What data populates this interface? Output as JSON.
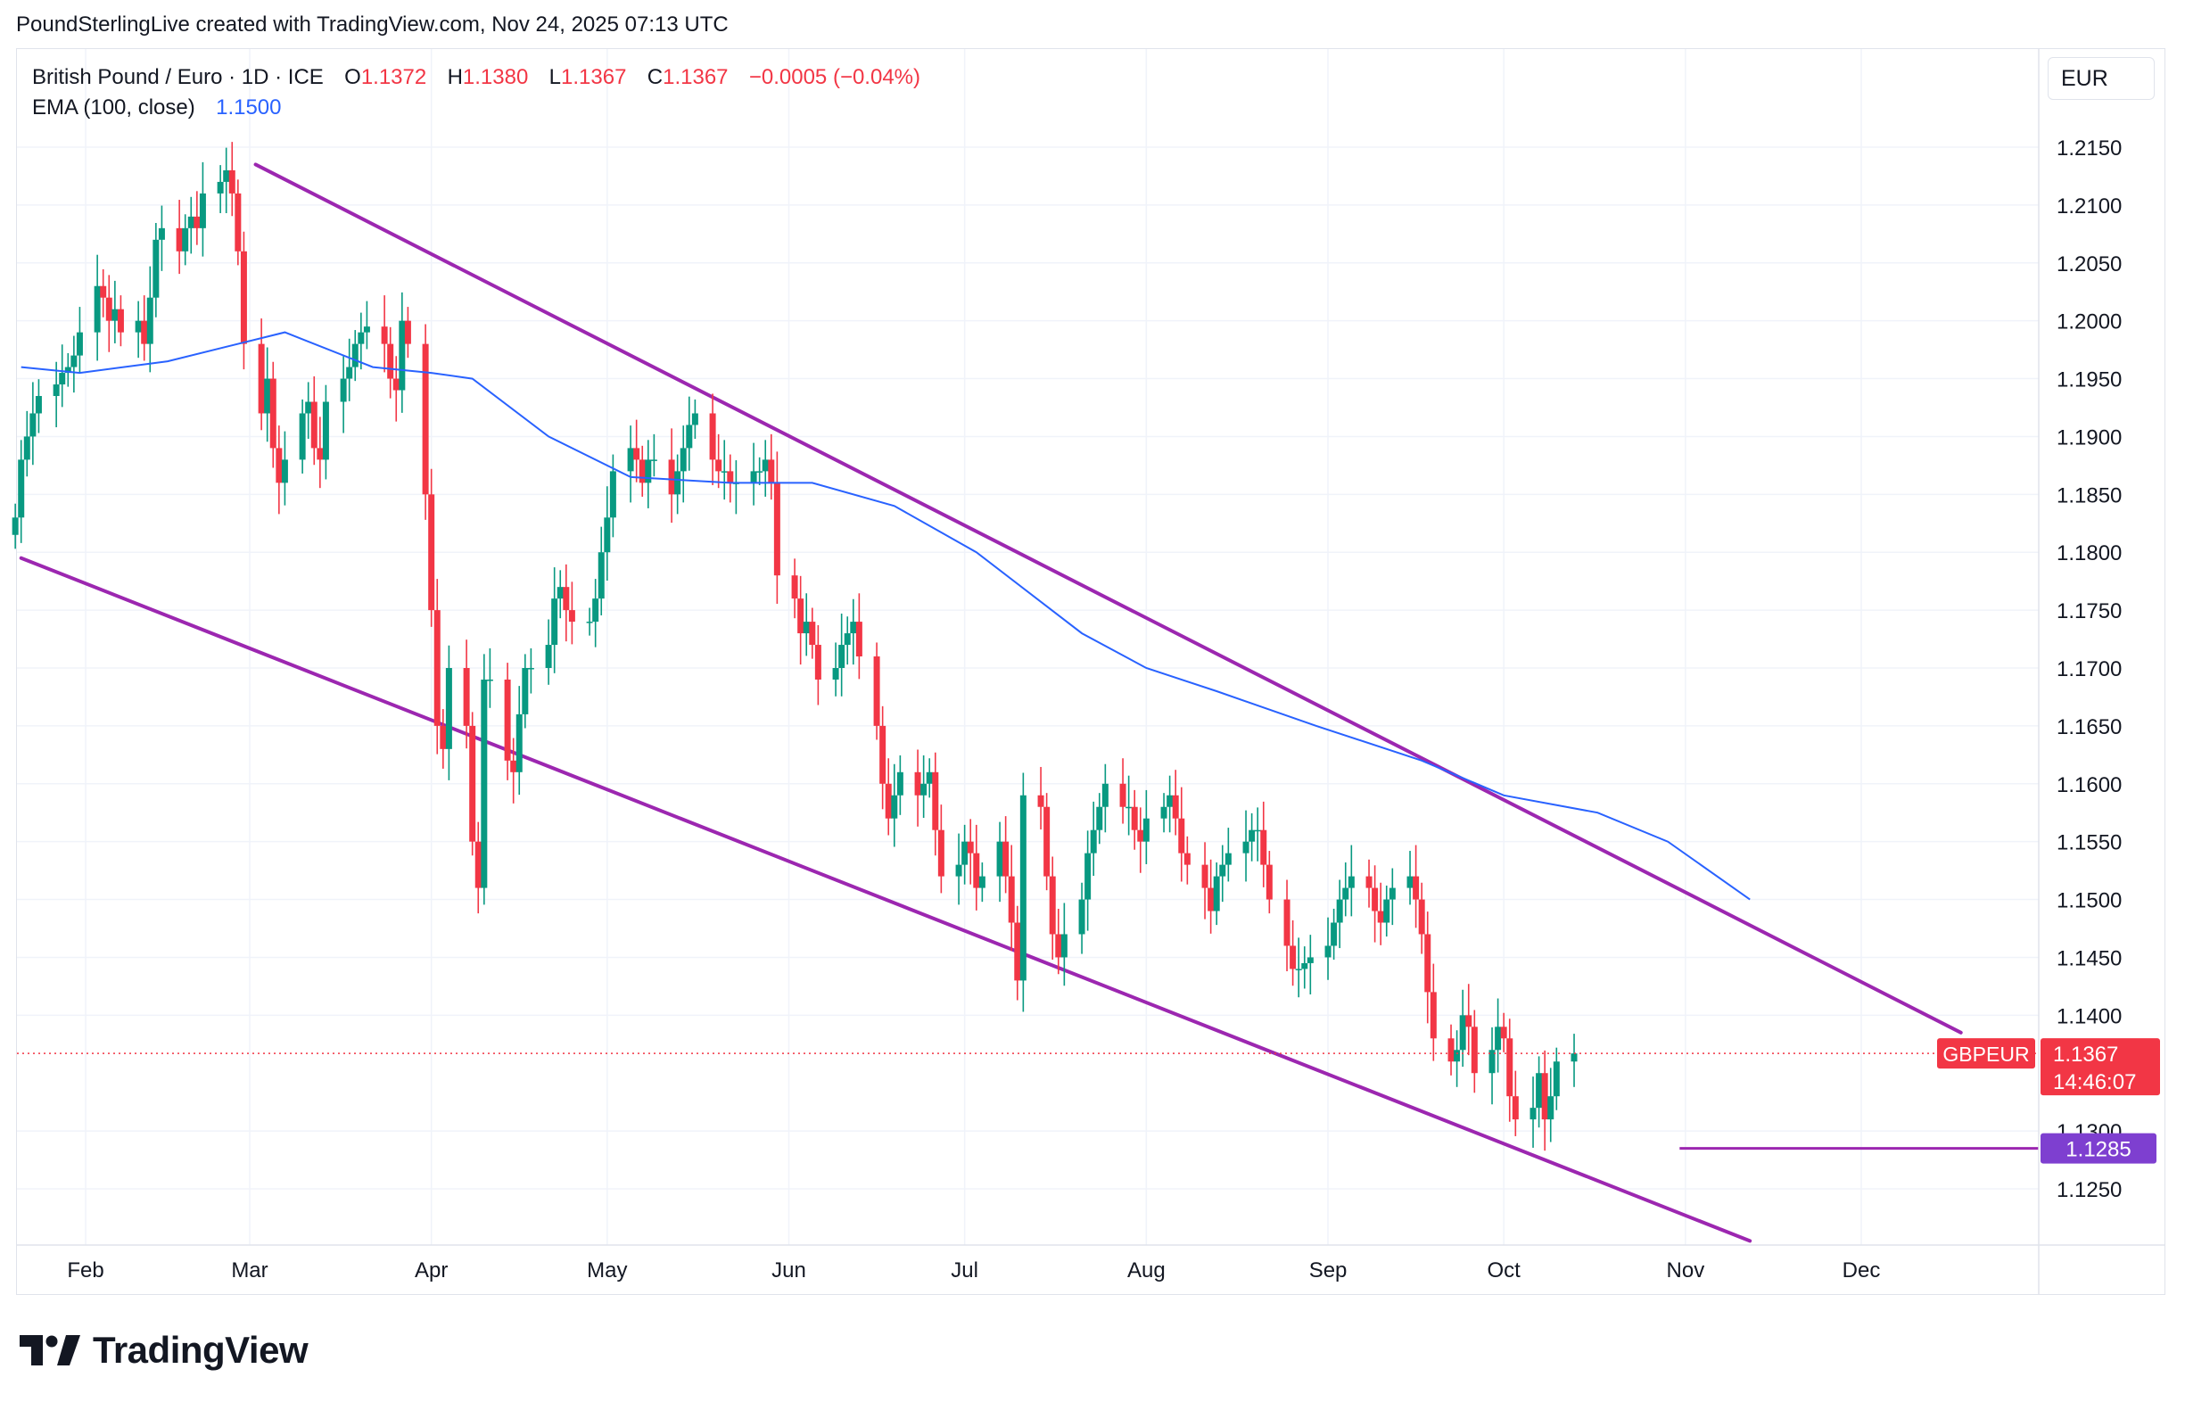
{
  "credit": "PoundSterlingLive created with TradingView.com, Nov 24, 2025 07:13 UTC",
  "legend": {
    "symbol": "British Pound / Euro · 1D · ICE",
    "o_label": "O",
    "o_value": "1.1372",
    "h_label": "H",
    "h_value": "1.1380",
    "l_label": "L",
    "l_value": "1.1367",
    "c_label": "C",
    "c_value": "1.1367",
    "change": "−0.0005 (−0.04%)",
    "ema_label": "EMA (100, close)",
    "ema_value": "1.1500"
  },
  "currency": "EUR",
  "brand": "TradingView",
  "colors": {
    "up": "#089981",
    "down": "#f23645",
    "ema": "#2962ff",
    "channel": "#9c27b0",
    "support_label": "#7e3fd0",
    "price_label": "#f23645"
  },
  "chart_data": {
    "type": "candlestick",
    "title": "British Pound / Euro · 1D · ICE",
    "ylabel": "EUR",
    "ylim": [
      1.1205,
      1.22
    ],
    "y_ticks": [
      "1.2150",
      "1.2100",
      "1.2050",
      "1.2000",
      "1.1950",
      "1.1900",
      "1.1850",
      "1.1800",
      "1.1750",
      "1.1700",
      "1.1650",
      "1.1600",
      "1.1550",
      "1.1500",
      "1.1450",
      "1.1400",
      "1.1300",
      "1.1250"
    ],
    "x_ticks": [
      "Feb",
      "Mar",
      "Apr",
      "May",
      "Jun",
      "Jul",
      "Aug",
      "Sep",
      "Oct",
      "Nov",
      "Dec"
    ],
    "x_tick_days": [
      0,
      28,
      59,
      89,
      120,
      150,
      181,
      212,
      242,
      273,
      303
    ],
    "x_start_day": -11,
    "x_end_day": 332,
    "series": [
      {
        "name": "GBPEUR close (approx.)",
        "start": "2025-01-20",
        "step_days": 1,
        "values": [
          1.183,
          1.188,
          1.19,
          1.192,
          1.1935,
          1.1945,
          1.1955,
          1.196,
          1.197,
          1.199,
          1.203,
          1.202,
          1.2,
          1.201,
          1.199,
          1.2,
          1.198,
          1.202,
          1.207,
          1.208,
          1.206,
          1.208,
          1.209,
          1.208,
          1.211,
          1.212,
          1.213,
          1.211,
          1.206,
          1.198,
          1.192,
          1.195,
          1.189,
          1.186,
          1.188,
          1.192,
          1.193,
          1.189,
          1.188,
          1.193,
          1.195,
          1.196,
          1.198,
          1.199,
          1.1995,
          1.198,
          1.195,
          1.194,
          1.2,
          1.198,
          1.185,
          1.175,
          1.165,
          1.163,
          1.17,
          1.165,
          1.155,
          1.151,
          1.169,
          1.169,
          1.162,
          1.161,
          1.166,
          1.17,
          1.17,
          1.172,
          1.176,
          1.177,
          1.175,
          1.174,
          1.174,
          1.176,
          1.18,
          1.183,
          1.187,
          1.189,
          1.188,
          1.186,
          1.188,
          1.188,
          1.185,
          1.187,
          1.189,
          1.191,
          1.192,
          1.188,
          1.187,
          1.187,
          1.186,
          1.186,
          1.187,
          1.187,
          1.188,
          1.186,
          1.178,
          1.176,
          1.173,
          1.174,
          1.172,
          1.169,
          1.17,
          1.172,
          1.173,
          1.174,
          1.171,
          1.165,
          1.16,
          1.157,
          1.159,
          1.161,
          1.159,
          1.16,
          1.161,
          1.156,
          1.152,
          1.153,
          1.155,
          1.154,
          1.151,
          1.152,
          1.155,
          1.152,
          1.148,
          1.143,
          1.159,
          1.158,
          1.152,
          1.147,
          1.145,
          1.147,
          1.15,
          1.154,
          1.156,
          1.158,
          1.16,
          1.158,
          1.158,
          1.156,
          1.155,
          1.157,
          1.158,
          1.159,
          1.157,
          1.154,
          1.153,
          1.151,
          1.149,
          1.152,
          1.153,
          1.154,
          1.155,
          1.156,
          1.156,
          1.153,
          1.15,
          1.146,
          1.144,
          1.144,
          1.1445,
          1.145,
          1.146,
          1.148,
          1.15,
          1.151,
          1.152,
          1.151,
          1.149,
          1.148,
          1.15,
          1.151,
          1.152,
          1.15,
          1.147,
          1.142,
          1.138,
          1.136,
          1.137,
          1.14,
          1.139,
          1.135,
          1.137,
          1.139,
          1.138,
          1.133,
          1.131,
          1.132,
          1.135,
          1.131,
          1.133,
          1.136,
          1.1367
        ]
      },
      {
        "name": "EMA (100, close)",
        "points": [
          [
            -11,
            1.196
          ],
          [
            -1,
            1.1955
          ],
          [
            14,
            1.1965
          ],
          [
            34,
            1.199
          ],
          [
            49,
            1.196
          ],
          [
            59,
            1.1955
          ],
          [
            66,
            1.195
          ],
          [
            79,
            1.19
          ],
          [
            93,
            1.1865
          ],
          [
            110,
            1.186
          ],
          [
            124,
            1.186
          ],
          [
            138,
            1.184
          ],
          [
            152,
            1.18
          ],
          [
            170,
            1.173
          ],
          [
            181,
            1.17
          ],
          [
            193,
            1.168
          ],
          [
            210,
            1.165
          ],
          [
            228,
            1.162
          ],
          [
            242,
            1.159
          ],
          [
            258,
            1.1575
          ],
          [
            270,
            1.155
          ],
          [
            284,
            1.15
          ]
        ]
      }
    ],
    "annotations": {
      "upper_channel": {
        "from": [
          29,
          1.2135
        ],
        "to": [
          320,
          1.1385
        ]
      },
      "lower_channel": {
        "from": [
          -11,
          1.1795
        ],
        "to": [
          284,
          1.1205
        ]
      },
      "support": {
        "value": 1.1285,
        "label": "1.1285"
      },
      "last_price": {
        "value": 1.1367,
        "symbol": "GBPEUR",
        "label": "1.1367",
        "countdown": "14:46:07"
      }
    }
  }
}
